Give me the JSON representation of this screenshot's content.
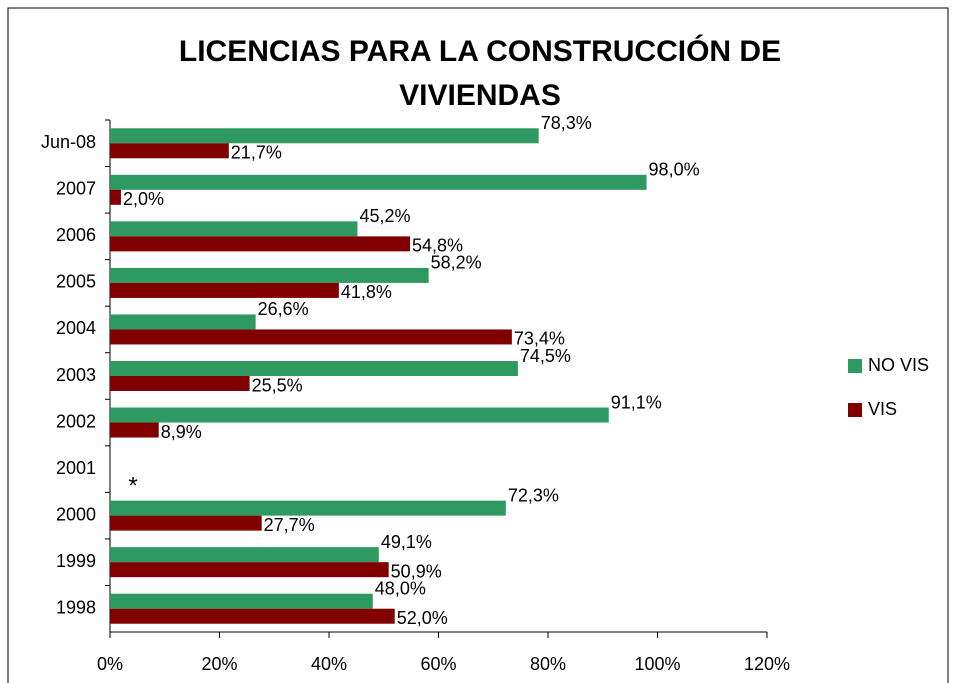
{
  "chart_data": {
    "type": "barh",
    "title": "LICENCIAS PARA LA CONSTRUCCIÓN DE VIVIENDAS",
    "categories": [
      "Jun-08",
      "2007",
      "2006",
      "2005",
      "2004",
      "2003",
      "2002",
      "2001",
      "2000",
      "1999",
      "1998"
    ],
    "series": [
      {
        "name": "NO VIS",
        "color": "#2e9a62",
        "values": [
          78.3,
          98.0,
          45.2,
          58.2,
          26.6,
          74.5,
          91.1,
          null,
          72.3,
          49.1,
          48.0
        ],
        "value_labels": [
          "78,3%",
          "98,0%",
          "45,2%",
          "58,2%",
          "26,6%",
          "74,5%",
          "91,1%",
          null,
          "72,3%",
          "49,1%",
          "48,0%"
        ]
      },
      {
        "name": "VIS",
        "color": "#800000",
        "values": [
          21.7,
          2.0,
          54.8,
          41.8,
          73.4,
          25.5,
          8.9,
          null,
          27.7,
          50.9,
          52.0
        ],
        "value_labels": [
          "21,7%",
          "2,0%",
          "54,8%",
          "41,8%",
          "73,4%",
          "25,5%",
          "8,9%",
          null,
          "27,7%",
          "50,9%",
          "52,0%"
        ]
      }
    ],
    "annotation": "*",
    "xlim": [
      0,
      120
    ],
    "xticks": [
      {
        "value": 0,
        "label": "0%"
      },
      {
        "value": 20,
        "label": "20%"
      },
      {
        "value": 40,
        "label": "40%"
      },
      {
        "value": 60,
        "label": "60%"
      },
      {
        "value": 80,
        "label": "80%"
      },
      {
        "value": 100,
        "label": "100%"
      },
      {
        "value": 120,
        "label": "120%"
      }
    ],
    "legend": "right"
  }
}
